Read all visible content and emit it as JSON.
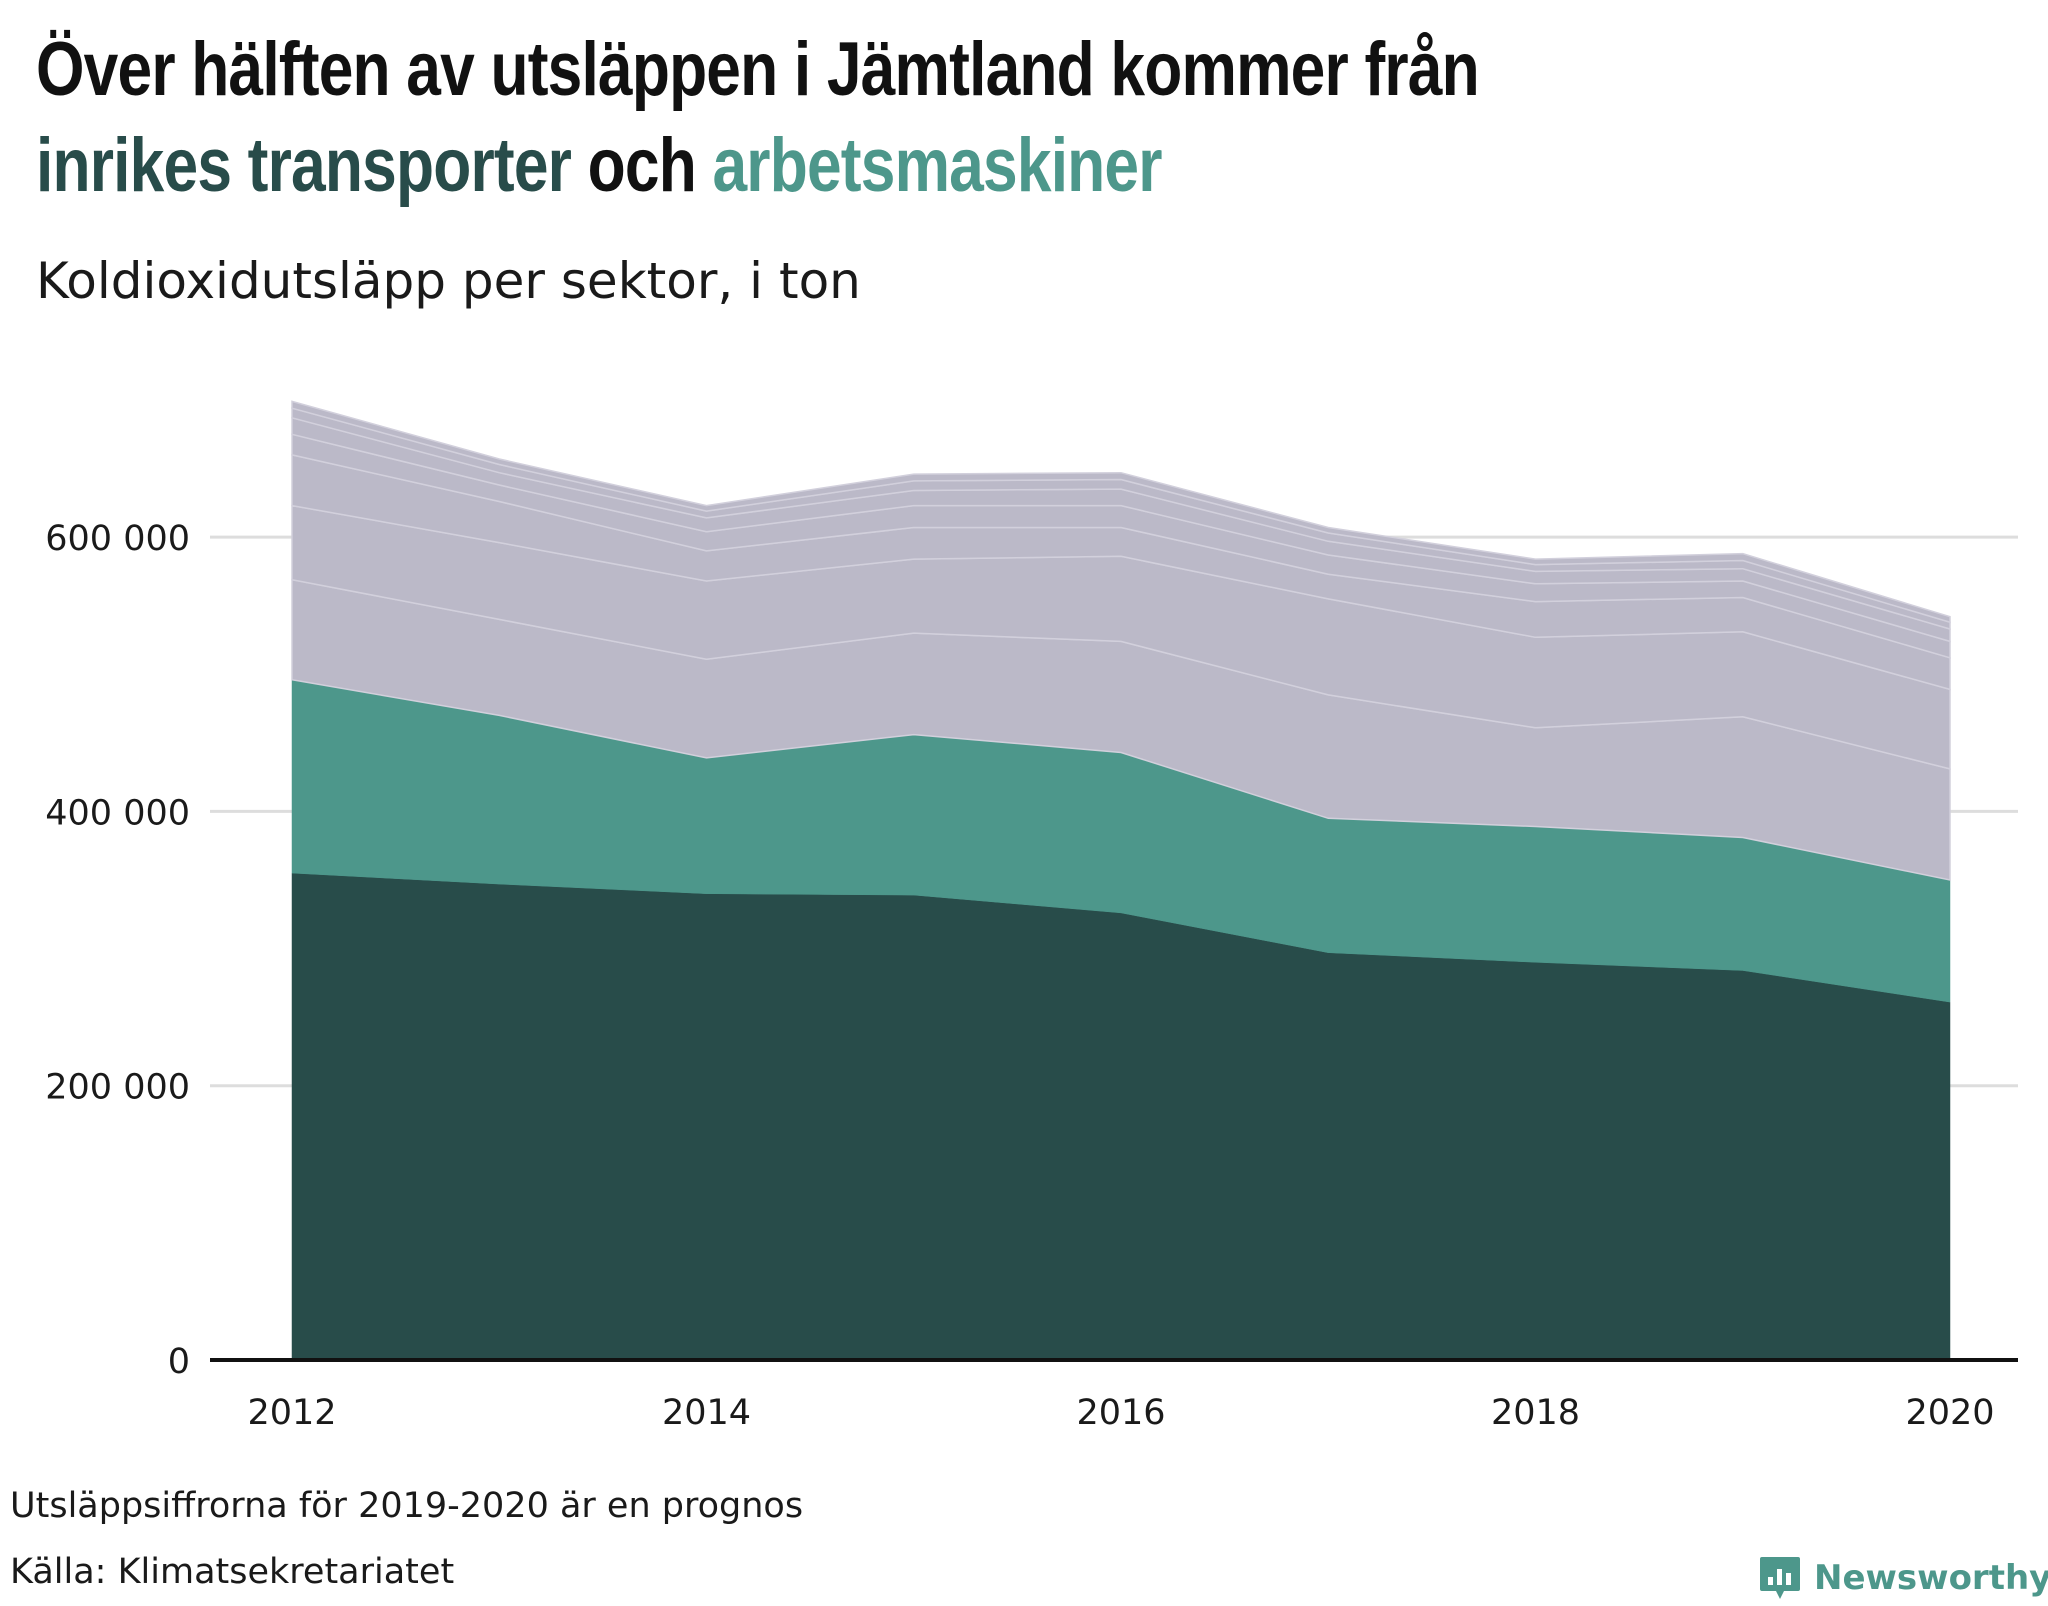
{
  "title": {
    "line1": "Över hälften av utsläppen i Jämtland kommer från",
    "part_a": "inrikes transporter",
    "joiner": " och ",
    "part_b": "arbetsmaskiner"
  },
  "subtitle": "Koldioxidutsläpp per sektor, i ton",
  "footnote": "Utsläppsiffrorna för 2019-2020 är en prognos",
  "source": "Källa: Klimatsekretariatet",
  "brand": {
    "name": "Newsworthy",
    "icon": "newsworthy-logo-icon"
  },
  "colors": {
    "transport": "#284c4a",
    "machines": "#4d978b",
    "other": "#bbb9c8",
    "grid": "#dddddd",
    "baseline": "#111111",
    "text": "#1a1a1a"
  },
  "chart_data": {
    "type": "area",
    "stacked": true,
    "x": [
      2012,
      2013,
      2014,
      2015,
      2016,
      2017,
      2018,
      2019,
      2020
    ],
    "xticks": [
      2012,
      2014,
      2016,
      2018,
      2020
    ],
    "ylim": [
      0,
      700000
    ],
    "yticks": [
      0,
      200000,
      400000,
      600000
    ],
    "ytick_labels": [
      "0",
      "200 000",
      "400 000",
      "600 000"
    ],
    "grid": true,
    "series": [
      {
        "name": "inrikes transporter",
        "color": "#284c4a",
        "values": [
          355000,
          347000,
          340000,
          339000,
          326000,
          297000,
          290000,
          284000,
          261000
        ]
      },
      {
        "name": "arbetsmaskiner",
        "color": "#4d978b",
        "values": [
          141000,
          123000,
          99000,
          117000,
          117000,
          98000,
          99000,
          97000,
          89000
        ]
      },
      {
        "color": "#bbb9c8",
        "values": [
          73000,
          70000,
          72000,
          74000,
          81000,
          90000,
          72000,
          88000,
          81000
        ]
      },
      {
        "color": "#bbb9c8",
        "values": [
          54000,
          56000,
          57000,
          54000,
          62000,
          70000,
          66000,
          62000,
          58000
        ]
      },
      {
        "color": "#bbb9c8",
        "values": [
          37000,
          30000,
          22000,
          23000,
          21000,
          18000,
          26000,
          25000,
          23000
        ]
      },
      {
        "color": "#bbb9c8",
        "values": [
          15000,
          12000,
          14000,
          16000,
          16000,
          14000,
          13000,
          12000,
          12000
        ]
      },
      {
        "color": "#bbb9c8",
        "values": [
          12000,
          9000,
          10000,
          11000,
          12000,
          10000,
          9000,
          9000,
          9000
        ]
      },
      {
        "color": "#bbb9c8",
        "values": [
          7000,
          6000,
          5000,
          7000,
          7000,
          6000,
          5000,
          6000,
          5000
        ]
      },
      {
        "color": "#bbb9c8",
        "values": [
          5000,
          4000,
          4000,
          5000,
          5000,
          4000,
          4000,
          5000,
          4000
        ]
      }
    ]
  }
}
